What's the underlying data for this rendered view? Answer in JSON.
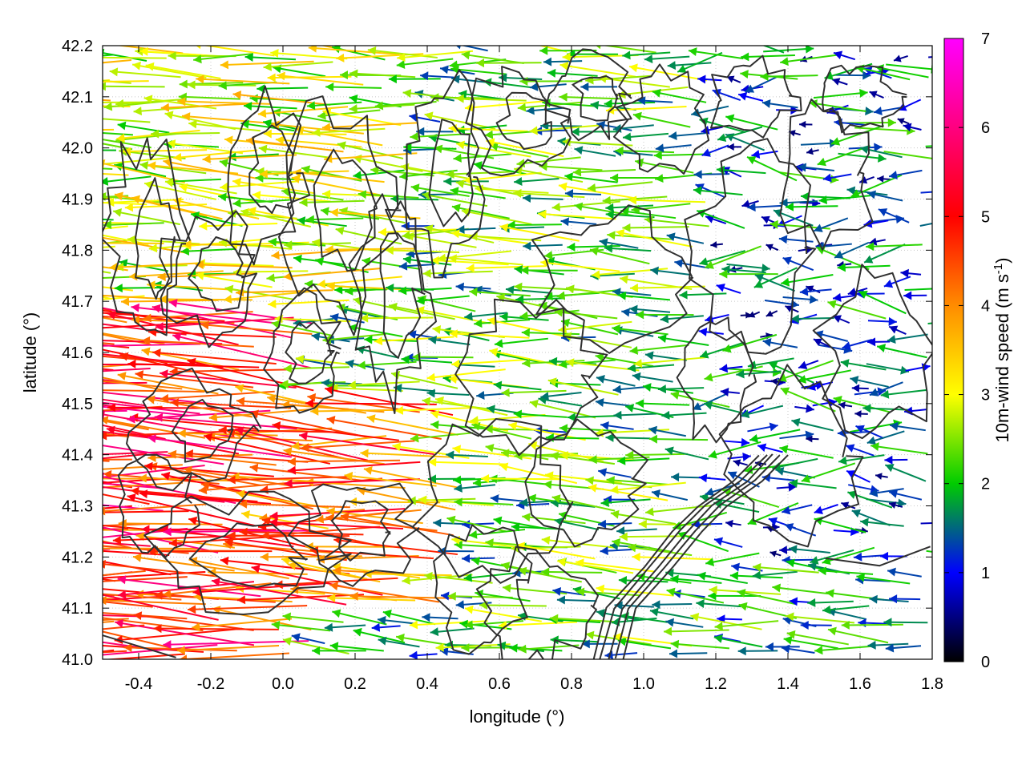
{
  "chart_data": {
    "type": "vector-field",
    "xlabel": "longitude (°)",
    "ylabel": "latitude (°)",
    "xlim": [
      -0.5,
      1.8
    ],
    "ylim": [
      41.0,
      42.2
    ],
    "x_ticks": [
      "-0.4",
      "-0.2",
      "0.0",
      "0.2",
      "0.4",
      "0.6",
      "0.8",
      "1.0",
      "1.2",
      "1.4",
      "1.6",
      "1.8"
    ],
    "y_ticks": [
      "41.0",
      "41.1",
      "41.2",
      "41.3",
      "41.4",
      "41.5",
      "41.6",
      "41.7",
      "41.8",
      "41.9",
      "42.0",
      "42.1",
      "42.2"
    ],
    "grid": true,
    "colorbar": {
      "label_main": "10m-wind speed (m s",
      "label_sup": "-1",
      "label_end": ")",
      "range": [
        0,
        7
      ],
      "ticks": [
        "0",
        "1",
        "2",
        "3",
        "4",
        "5",
        "6",
        "7"
      ],
      "colors": [
        "#000000",
        "#0000ff",
        "#00cc00",
        "#ffff00",
        "#ff8c00",
        "#ff0000",
        "#ff00ff"
      ]
    },
    "wind_field_regions": [
      {
        "lon_range": [
          -0.5,
          0.1
        ],
        "lat_range": [
          41.0,
          41.7
        ],
        "speed_ms": 5.5,
        "direction": "from east"
      },
      {
        "lon_range": [
          0.1,
          0.5
        ],
        "lat_range": [
          41.1,
          41.5
        ],
        "speed_ms": 5.0,
        "direction": "from east"
      },
      {
        "lon_range": [
          -0.5,
          0.4
        ],
        "lat_range": [
          41.7,
          42.2
        ],
        "speed_ms": 3.3,
        "direction": "from east"
      },
      {
        "lon_range": [
          0.4,
          1.2
        ],
        "lat_range": [
          41.5,
          42.2
        ],
        "speed_ms": 2.5,
        "direction": "from east"
      },
      {
        "lon_range": [
          0.5,
          1.2
        ],
        "lat_range": [
          41.0,
          41.5
        ],
        "speed_ms": 2.5,
        "direction": "from east"
      },
      {
        "lon_range": [
          1.2,
          1.8
        ],
        "lat_range": [
          41.2,
          42.2
        ],
        "speed_ms": 1.6,
        "direction": "variable"
      },
      {
        "lon_range": [
          1.2,
          1.8
        ],
        "lat_range": [
          41.0,
          41.2
        ],
        "speed_ms": 2.2,
        "direction": "from east"
      }
    ]
  }
}
